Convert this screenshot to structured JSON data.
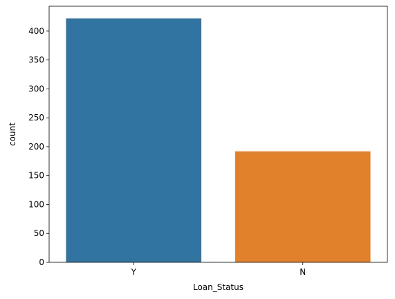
{
  "chart_data": {
    "type": "bar",
    "categories": [
      "Y",
      "N"
    ],
    "values": [
      422,
      192
    ],
    "xlabel": "Loan_Status",
    "ylabel": "count",
    "ylim": [
      0,
      443
    ],
    "yticks": [
      0,
      50,
      100,
      150,
      200,
      250,
      300,
      350,
      400
    ],
    "colors": [
      "#3274a1",
      "#e1812c"
    ],
    "grid": false,
    "legend": "none"
  }
}
